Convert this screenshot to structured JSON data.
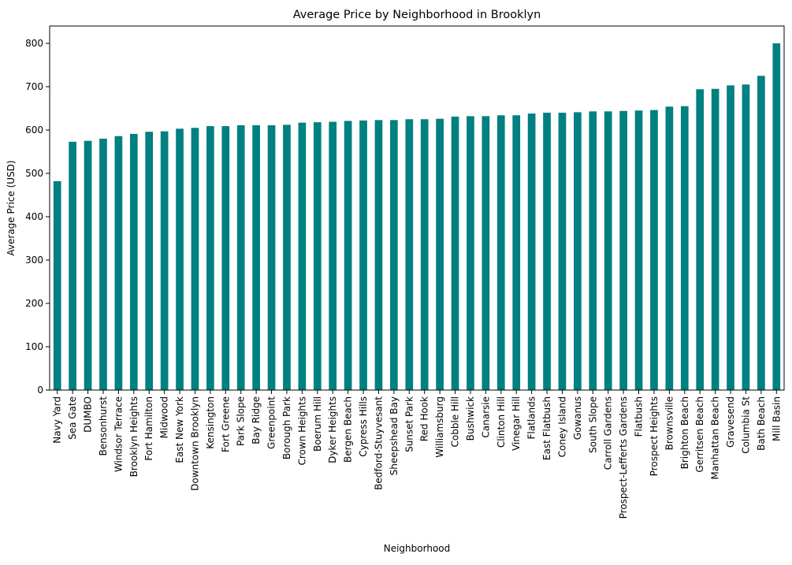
{
  "chart_data": {
    "type": "bar",
    "title": "Average Price by Neighborhood in Brooklyn",
    "xlabel": "Neighborhood",
    "ylabel": "Average Price (USD)",
    "ylim": [
      0,
      840
    ],
    "yticks": [
      0,
      100,
      200,
      300,
      400,
      500,
      600,
      700,
      800
    ],
    "grid": false,
    "bar_color": "#008080",
    "categories": [
      "Navy Yard",
      "Sea Gate",
      "DUMBO",
      "Bensonhurst",
      "Windsor Terrace",
      "Brooklyn Heights",
      "Fort Hamilton",
      "Midwood",
      "East New York",
      "Downtown Brooklyn",
      "Kensington",
      "Fort Greene",
      "Park Slope",
      "Bay Ridge",
      "Greenpoint",
      "Borough Park",
      "Crown Heights",
      "Boerum Hill",
      "Dyker Heights",
      "Bergen Beach",
      "Cypress Hills",
      "Bedford-Stuyvesant",
      "Sheepshead Bay",
      "Sunset Park",
      "Red Hook",
      "Williamsburg",
      "Cobble Hill",
      "Bushwick",
      "Canarsie",
      "Clinton Hill",
      "Vinegar Hill",
      "Flatlands",
      "East Flatbush",
      "Coney Island",
      "Gowanus",
      "South Slope",
      "Carroll Gardens",
      "Prospect-Lefferts Gardens",
      "Flatbush",
      "Prospect Heights",
      "Brownsville",
      "Brighton Beach",
      "Gerritsen Beach",
      "Manhattan Beach",
      "Gravesend",
      "Columbia St",
      "Bath Beach",
      "Mill Basin"
    ],
    "values": [
      482,
      573,
      575,
      580,
      586,
      591,
      596,
      597,
      603,
      605,
      609,
      609,
      611,
      611,
      611,
      612,
      617,
      618,
      619,
      621,
      622,
      623,
      623,
      625,
      625,
      626,
      631,
      632,
      632,
      634,
      634,
      638,
      640,
      640,
      641,
      643,
      643,
      644,
      645,
      646,
      654,
      655,
      694,
      695,
      703,
      705,
      725,
      800
    ]
  }
}
